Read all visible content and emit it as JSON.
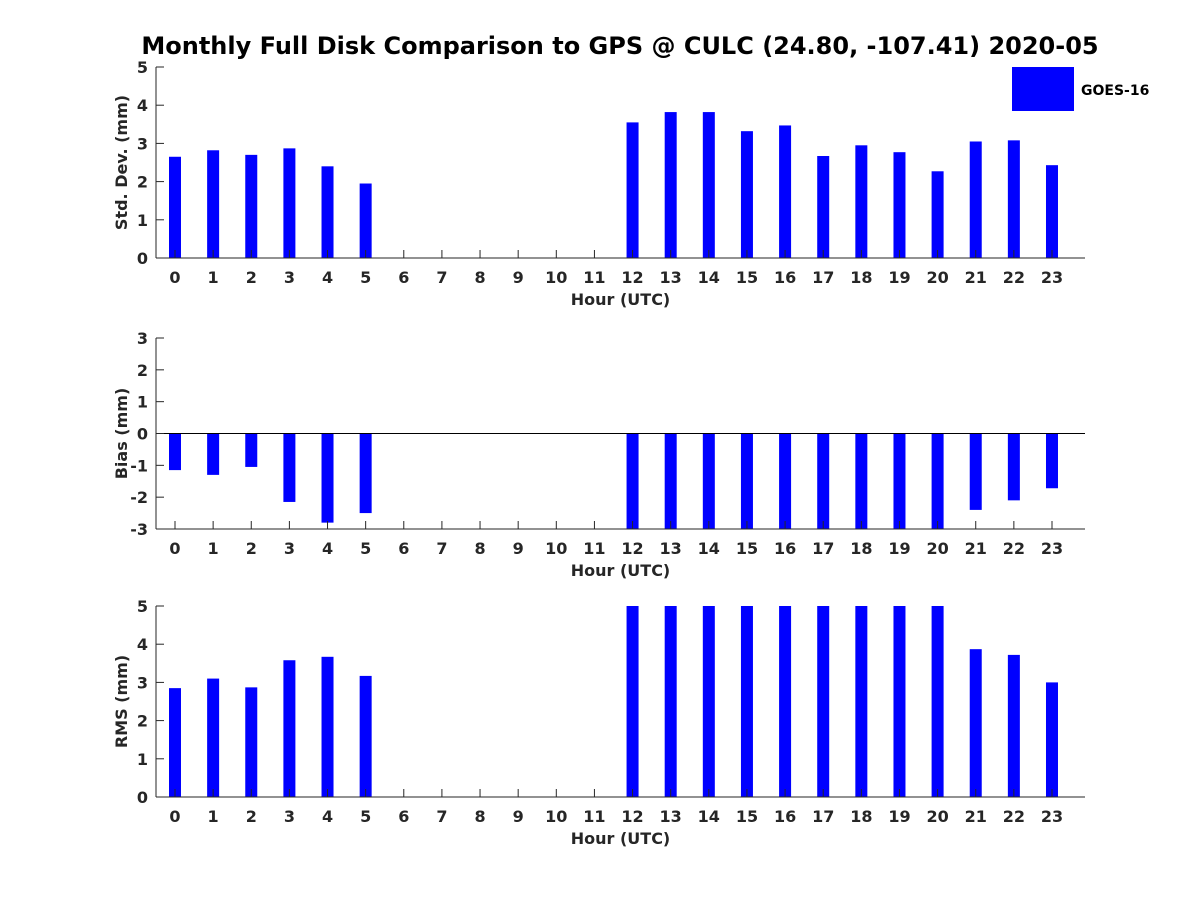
{
  "figure": {
    "title": "Monthly Full Disk Comparison to GPS @ CULC (24.80, -107.41) 2020-05",
    "legend": {
      "label": "GOES-16",
      "color": "#0000ff",
      "placement": "top-right"
    }
  },
  "chart_data": [
    {
      "type": "bar",
      "name": "std-dev",
      "ylabel": "Std. Dev. (mm)",
      "xlabel": "Hour (UTC)",
      "ylim": [
        0,
        5
      ],
      "yticks": [
        0,
        1,
        2,
        3,
        4,
        5
      ],
      "categories": [
        "0",
        "1",
        "2",
        "3",
        "4",
        "5",
        "6",
        "7",
        "8",
        "9",
        "10",
        "11",
        "12",
        "13",
        "14",
        "15",
        "16",
        "17",
        "18",
        "19",
        "20",
        "21",
        "22",
        "23"
      ],
      "series": [
        {
          "color": "#0000ff",
          "values": [
            2.65,
            2.82,
            2.7,
            2.87,
            2.4,
            1.95,
            null,
            null,
            null,
            null,
            null,
            null,
            3.55,
            3.82,
            3.82,
            3.32,
            3.47,
            2.67,
            2.95,
            2.77,
            2.27,
            3.05,
            3.08,
            2.43
          ]
        }
      ]
    },
    {
      "type": "bar",
      "name": "bias",
      "ylabel": "Bias (mm)",
      "xlabel": "Hour (UTC)",
      "ylim": [
        -3,
        3
      ],
      "yticks": [
        -3,
        -2,
        -1,
        0,
        1,
        2,
        3
      ],
      "categories": [
        "0",
        "1",
        "2",
        "3",
        "4",
        "5",
        "6",
        "7",
        "8",
        "9",
        "10",
        "11",
        "12",
        "13",
        "14",
        "15",
        "16",
        "17",
        "18",
        "19",
        "20",
        "21",
        "22",
        "23"
      ],
      "series": [
        {
          "color": "#0000ff",
          "values": [
            -1.15,
            -1.3,
            -1.05,
            -2.15,
            -2.8,
            -2.5,
            null,
            null,
            null,
            null,
            null,
            null,
            -3.0,
            -3.0,
            -3.0,
            -3.0,
            -3.0,
            -3.0,
            -3.0,
            -3.0,
            -3.0,
            -2.4,
            -2.1,
            -1.72
          ]
        }
      ]
    },
    {
      "type": "bar",
      "name": "rms",
      "ylabel": "RMS (mm)",
      "xlabel": "Hour (UTC)",
      "ylim": [
        0,
        5
      ],
      "yticks": [
        0,
        1,
        2,
        3,
        4,
        5
      ],
      "categories": [
        "0",
        "1",
        "2",
        "3",
        "4",
        "5",
        "6",
        "7",
        "8",
        "9",
        "10",
        "11",
        "12",
        "13",
        "14",
        "15",
        "16",
        "17",
        "18",
        "19",
        "20",
        "21",
        "22",
        "23"
      ],
      "series": [
        {
          "color": "#0000ff",
          "values": [
            2.85,
            3.1,
            2.87,
            3.58,
            3.67,
            3.17,
            null,
            null,
            null,
            null,
            null,
            null,
            5.0,
            5.0,
            5.0,
            5.0,
            5.0,
            5.0,
            5.0,
            5.0,
            5.0,
            3.87,
            3.72,
            3.0
          ]
        }
      ]
    }
  ]
}
